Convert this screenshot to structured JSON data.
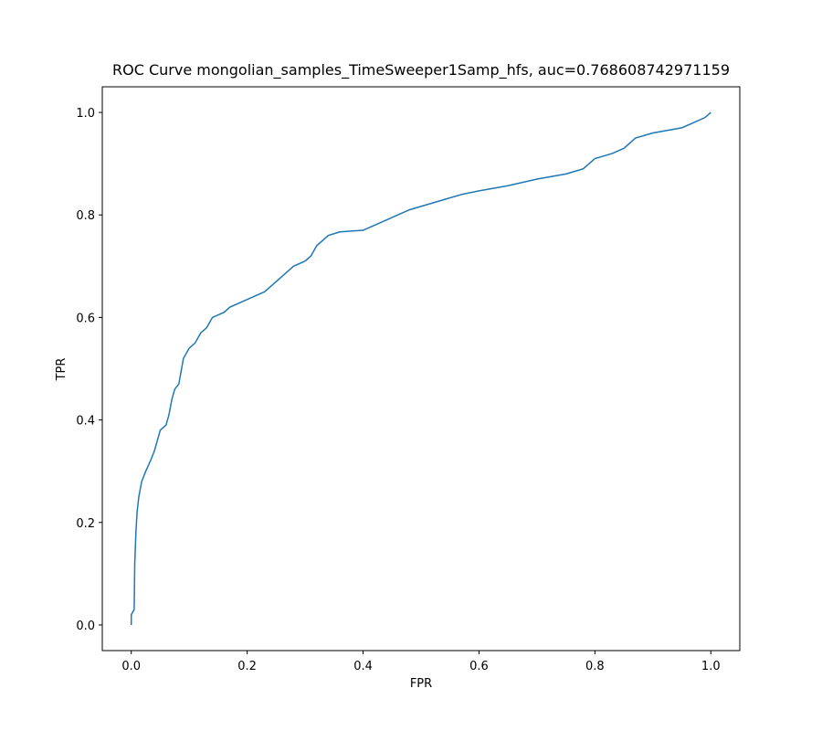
{
  "chart_data": {
    "type": "line",
    "title": "ROC Curve mongolian_samples_TimeSweeper1Samp_hfs, auc=0.768608742971159",
    "x_label": "FPR",
    "y_label": "TPR",
    "x": [
      0,
      0,
      0.005,
      0.006,
      0.008,
      0.01,
      0.013,
      0.018,
      0.025,
      0.033,
      0.04,
      0.045,
      0.05,
      0.06,
      0.065,
      0.07,
      0.075,
      0.082,
      0.09,
      0.095,
      0.1,
      0.11,
      0.12,
      0.13,
      0.14,
      0.16,
      0.17,
      0.19,
      0.21,
      0.23,
      0.25,
      0.27,
      0.28,
      0.3,
      0.31,
      0.32,
      0.34,
      0.36,
      0.4,
      0.42,
      0.44,
      0.46,
      0.48,
      0.51,
      0.54,
      0.57,
      0.6,
      0.65,
      0.7,
      0.75,
      0.78,
      0.8,
      0.83,
      0.85,
      0.87,
      0.9,
      0.95,
      0.97,
      0.99,
      1
    ],
    "series": [
      {
        "color": "#1f77b4",
        "values": [
          0,
          0.02,
          0.03,
          0.12,
          0.18,
          0.22,
          0.25,
          0.28,
          0.3,
          0.32,
          0.34,
          0.36,
          0.38,
          0.39,
          0.41,
          0.44,
          0.46,
          0.47,
          0.52,
          0.53,
          0.54,
          0.55,
          0.57,
          0.58,
          0.6,
          0.61,
          0.62,
          0.63,
          0.64,
          0.65,
          0.67,
          0.69,
          0.7,
          0.71,
          0.72,
          0.74,
          0.76,
          0.767,
          0.77,
          0.78,
          0.79,
          0.8,
          0.81,
          0.82,
          0.83,
          0.84,
          0.847,
          0.857,
          0.87,
          0.88,
          0.89,
          0.91,
          0.92,
          0.93,
          0.95,
          0.96,
          0.97,
          0.98,
          0.99,
          1
        ]
      }
    ],
    "xlim": [
      -0.05,
      1.05
    ],
    "ylim": [
      -0.05,
      1.05
    ],
    "xticks": [
      {
        "value": 0,
        "label": "0.0"
      },
      0.2,
      0.4,
      0.6,
      0.8,
      {
        "value": 1,
        "label": "1.0"
      }
    ],
    "yticks": [
      {
        "value": 0,
        "label": "0.0"
      },
      0.2,
      0.4,
      0.6,
      0.8,
      {
        "value": 1,
        "label": "1.0"
      }
    ],
    "grid": false
  }
}
